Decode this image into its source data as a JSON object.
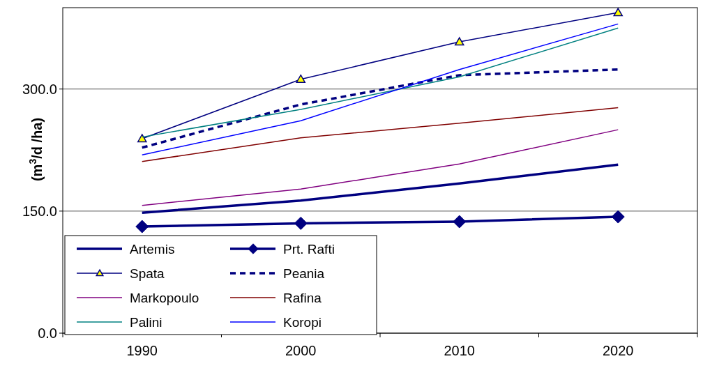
{
  "chart_data": {
    "type": "line",
    "ylabel": "(m$^{3}$/d /ha)",
    "categories": [
      "1990",
      "2000",
      "2010",
      "2020"
    ],
    "ylim": [
      0,
      400
    ],
    "yticks": [
      {
        "value": 0,
        "label": "0.0"
      },
      {
        "value": 150,
        "label": "150.0"
      },
      {
        "value": 300,
        "label": "300.0"
      }
    ],
    "grid": "y",
    "legend": "bottom left",
    "series": [
      {
        "name": "Artemis",
        "color": "#000080",
        "values": [
          148,
          163,
          184,
          207
        ]
      },
      {
        "name": "Prt. Rafti",
        "color": "#000080",
        "marker": "diamond",
        "values": [
          131,
          135,
          137,
          143
        ]
      },
      {
        "name": "Spata",
        "color": "#000080",
        "marker": "triangle",
        "values": [
          239,
          312,
          358,
          394
        ]
      },
      {
        "name": "Peania",
        "color": "#000080",
        "line_style": "dashed",
        "values": [
          228,
          281,
          317,
          324
        ]
      },
      {
        "name": "Markopoulo",
        "color": "#800080",
        "values": [
          157,
          177,
          208,
          250
        ]
      },
      {
        "name": "Rafina",
        "color": "#800000",
        "values": [
          211,
          240,
          258,
          277
        ]
      },
      {
        "name": "Palini",
        "color": "#008080",
        "values": [
          241,
          275,
          315,
          375
        ]
      },
      {
        "name": "Koropi",
        "color": "#0000ff",
        "values": [
          219,
          261,
          324,
          380
        ]
      }
    ]
  }
}
